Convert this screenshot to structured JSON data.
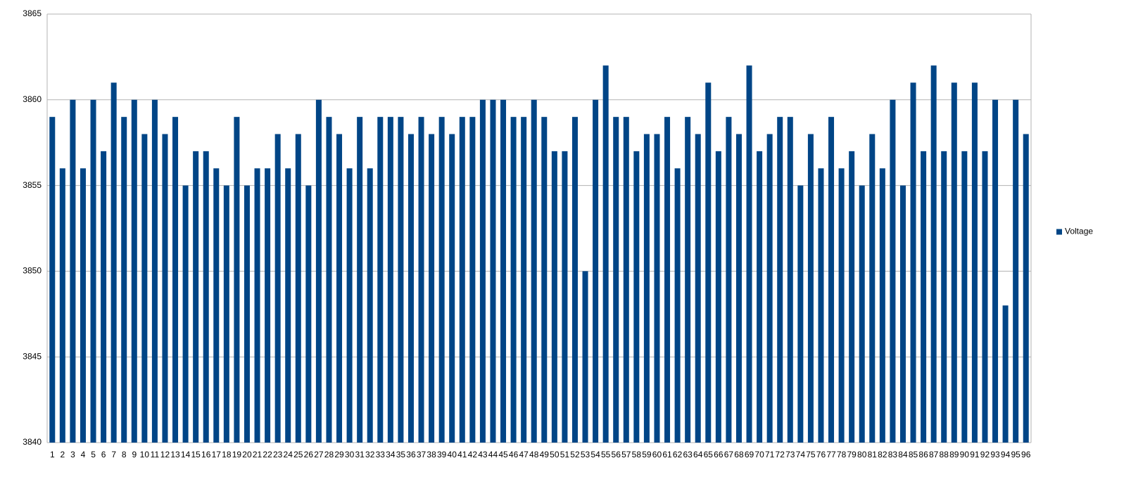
{
  "chart_data": {
    "type": "bar",
    "categories": [
      "1",
      "2",
      "3",
      "4",
      "5",
      "6",
      "7",
      "8",
      "9",
      "10",
      "11",
      "12",
      "13",
      "14",
      "15",
      "16",
      "17",
      "18",
      "19",
      "20",
      "21",
      "22",
      "23",
      "24",
      "25",
      "26",
      "27",
      "28",
      "29",
      "30",
      "31",
      "32",
      "33",
      "34",
      "35",
      "36",
      "37",
      "38",
      "39",
      "40",
      "41",
      "42",
      "43",
      "44",
      "45",
      "46",
      "47",
      "48",
      "49",
      "50",
      "51",
      "52",
      "53",
      "54",
      "55",
      "56",
      "57",
      "58",
      "59",
      "60",
      "61",
      "62",
      "63",
      "64",
      "65",
      "66",
      "67",
      "68",
      "69",
      "70",
      "71",
      "72",
      "73",
      "74",
      "75",
      "76",
      "77",
      "78",
      "79",
      "80",
      "81",
      "82",
      "83",
      "84",
      "85",
      "86",
      "87",
      "88",
      "89",
      "90",
      "91",
      "92",
      "93",
      "94",
      "95",
      "96"
    ],
    "series": [
      {
        "name": "Voltage",
        "color": "#004586",
        "values": [
          3859,
          3856,
          3860,
          3856,
          3860,
          3857,
          3861,
          3859,
          3860,
          3858,
          3860,
          3858,
          3859,
          3855,
          3857,
          3857,
          3856,
          3855,
          3859,
          3855,
          3856,
          3856,
          3858,
          3856,
          3858,
          3855,
          3860,
          3859,
          3858,
          3856,
          3859,
          3856,
          3859,
          3859,
          3859,
          3858,
          3859,
          3858,
          3859,
          3858,
          3859,
          3859,
          3860,
          3860,
          3860,
          3859,
          3859,
          3860,
          3859,
          3857,
          3857,
          3859,
          3850,
          3860,
          3862,
          3859,
          3859,
          3857,
          3858,
          3858,
          3859,
          3856,
          3859,
          3858,
          3861,
          3857,
          3859,
          3858,
          3862,
          3857,
          3858,
          3859,
          3859,
          3855,
          3858,
          3856,
          3859,
          3856,
          3857,
          3855,
          3858,
          3856,
          3860,
          3855,
          3861,
          3857,
          3862,
          3857,
          3861,
          3857,
          3861,
          3857,
          3860,
          3848,
          3860,
          3858
        ]
      }
    ],
    "ylim": [
      3840,
      3865
    ],
    "yticks": [
      3840,
      3845,
      3850,
      3855,
      3860,
      3865
    ],
    "grid": true,
    "legend": "right"
  }
}
